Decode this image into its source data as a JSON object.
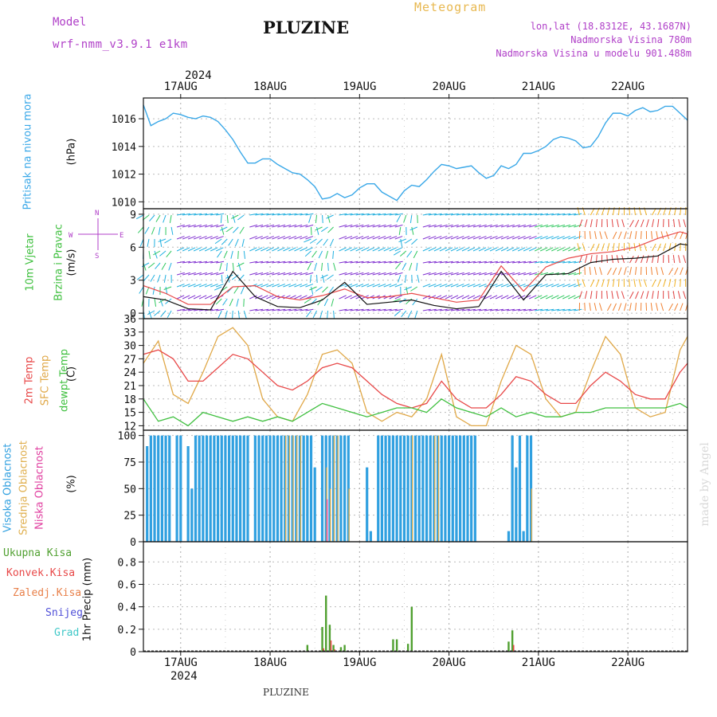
{
  "header": {
    "model_label": "Model",
    "model_name": "wrf-nmm_v3.9.1  e1km",
    "title": "PLUZINE",
    "meteogram": "Meteogram",
    "lonlat": "lon,lat (18.8312E, 43.1687N)",
    "elevation": "Nadmorska Visina 780m",
    "model_elevation": "Nadmorska Visina u modelu 901.488m"
  },
  "footer": {
    "station": "PLUZINE",
    "credit": "made by Angel"
  },
  "time_axis": {
    "year": "2024",
    "days": [
      "17AUG",
      "18AUG",
      "19AUG",
      "20AUG",
      "21AUG",
      "22AUG"
    ]
  },
  "colors": {
    "pressure": "#3aa8e8",
    "temp2m": "#e84848",
    "sfc": "#e0a848",
    "dewpt": "#40c040",
    "cloud_high": "#30a0e0",
    "cloud_mid": "#e0b050",
    "cloud_low": "#e040a0",
    "precip_total": "#50a030",
    "precip_conv": "#e84848",
    "wind_speed": "#111111",
    "wind_gust": "#e84848"
  },
  "panels": {
    "pressure": {
      "label": "Pritisak na nivou mora",
      "unit": "(hPa)"
    },
    "wind": {
      "label1": "10m Vjetar",
      "label2": "Brzina i Pravac",
      "unit": "(m/s)",
      "compass_n": "N",
      "compass_s": "S",
      "compass_w": "W",
      "compass_e": "E"
    },
    "temp": {
      "label1": "2m Temp",
      "label2": "SFC Temp",
      "label3": "dewpt Temp",
      "unit": "(C)"
    },
    "cloud": {
      "label1": "Visoka Oblacnost",
      "label2": "Srednja Oblacnost",
      "label3": "Niska Oblacnost",
      "unit": "(%)"
    },
    "precip": {
      "label": "1hr Precip (mm)",
      "legend": [
        "Ukupna Kisa",
        "Konvek.Kisa",
        "Zaledj.Kisa",
        "Snijeg",
        "Grad"
      ]
    }
  },
  "chart_data": [
    {
      "type": "line",
      "title": "Pritisak na nivou mora",
      "ylabel": "(hPa)",
      "ylim": [
        1009.5,
        1017.5
      ],
      "yticks": [
        1010,
        1012,
        1014,
        1016
      ],
      "x_hours_from_16AUG": [
        14,
        16,
        18,
        20,
        22,
        24,
        26,
        28,
        30,
        32,
        34,
        36,
        38,
        40,
        42,
        44,
        46,
        48,
        50,
        52,
        54,
        56,
        58,
        60,
        62,
        64,
        66,
        68,
        70,
        72,
        74,
        76,
        78,
        80,
        82,
        84,
        86,
        88,
        90,
        92,
        94,
        96,
        98,
        100,
        102,
        104,
        106,
        108,
        110,
        112,
        114,
        116,
        118,
        120,
        122,
        124,
        126,
        128,
        130,
        132,
        134,
        136,
        138,
        140,
        142,
        144,
        146,
        148,
        150,
        152,
        154,
        156,
        158,
        160
      ],
      "values": [
        1017,
        1015.5,
        1015.8,
        1016,
        1016.4,
        1016.3,
        1016.1,
        1016,
        1016.2,
        1016.1,
        1015.8,
        1015.2,
        1014.5,
        1013.6,
        1012.8,
        1012.8,
        1013.1,
        1013.1,
        1012.7,
        1012.4,
        1012.1,
        1012,
        1011.6,
        1011.1,
        1010.2,
        1010.3,
        1010.6,
        1010.3,
        1010.5,
        1011,
        1011.3,
        1011.3,
        1010.7,
        1010.4,
        1010.1,
        1010.8,
        1011.2,
        1011.1,
        1011.6,
        1012.2,
        1012.7,
        1012.6,
        1012.4,
        1012.5,
        1012.6,
        1012.1,
        1011.7,
        1011.9,
        1012.6,
        1012.4,
        1012.7,
        1013.5,
        1013.5,
        1013.7,
        1014,
        1014.5,
        1014.7,
        1014.6,
        1014.4,
        1013.9,
        1014,
        1014.7,
        1015.7,
        1016.4,
        1016.4,
        1016.2,
        1016.6,
        1016.8,
        1016.5,
        1016.6,
        1016.9,
        1016.9,
        1016.4,
        1015.9
      ],
      "legend": "none",
      "grid": true
    },
    {
      "type": "line",
      "title": "10m Vjetar Brzina i Pravac",
      "ylabel": "(m/s)",
      "ylim": [
        -0.5,
        9.5
      ],
      "yticks": [
        0,
        3,
        6,
        9
      ],
      "x_hours_from_16AUG": [
        14,
        20,
        26,
        32,
        38,
        44,
        50,
        56,
        62,
        68,
        74,
        80,
        86,
        92,
        98,
        104,
        110,
        116,
        122,
        128,
        134,
        140,
        146,
        152,
        158,
        160
      ],
      "series": [
        {
          "name": "",
          "values": [
            1.5,
            1.2,
            0.4,
            0.3,
            3.8,
            1.5,
            0.6,
            0.5,
            1.2,
            2.8,
            0.8,
            1.0,
            1.2,
            0.7,
            0.4,
            0.6,
            3.8,
            1.2,
            3.5,
            3.6,
            4.6,
            4.9,
            5.0,
            5.2,
            6.3,
            6.2
          ]
        },
        {
          "name": "",
          "values": [
            2.5,
            1.8,
            0.8,
            0.8,
            2.4,
            2.5,
            1.5,
            1.2,
            1.6,
            2.2,
            1.4,
            1.5,
            1.8,
            1.4,
            1.0,
            1.2,
            4.3,
            2.0,
            4.2,
            5.0,
            5.4,
            5.6,
            6.0,
            6.8,
            7.4,
            7.2
          ]
        }
      ],
      "legend": "none",
      "grid": true
    },
    {
      "type": "line",
      "title": "",
      "ylabel": "(C)",
      "ylim": [
        11,
        36
      ],
      "yticks": [
        12,
        15,
        18,
        21,
        24,
        27,
        30,
        33,
        36
      ],
      "x_hours_from_16AUG": [
        14,
        18,
        22,
        26,
        30,
        34,
        38,
        42,
        46,
        50,
        54,
        58,
        62,
        66,
        70,
        74,
        78,
        82,
        86,
        90,
        94,
        98,
        102,
        106,
        110,
        114,
        118,
        122,
        126,
        130,
        134,
        138,
        142,
        146,
        150,
        154,
        158,
        160
      ],
      "series": [
        {
          "name": "2m Temp",
          "values": [
            28,
            29,
            27,
            22,
            22,
            25,
            28,
            27,
            24,
            21,
            20,
            22,
            25,
            26,
            25,
            22,
            19,
            17,
            16,
            17,
            22,
            18,
            16,
            16,
            19,
            23,
            22,
            19,
            17,
            17,
            21,
            24,
            22,
            19,
            18,
            18,
            24,
            26
          ]
        },
        {
          "name": "SFC Temp",
          "values": [
            26,
            31,
            19,
            17,
            24,
            32,
            34,
            30,
            18,
            14,
            13,
            19,
            28,
            29,
            26,
            15,
            13,
            15,
            14,
            18,
            28,
            14,
            12,
            12,
            22,
            30,
            28,
            18,
            14,
            15,
            24,
            32,
            28,
            16,
            14,
            15,
            29,
            32
          ]
        },
        {
          "name": "dewpt Temp",
          "values": [
            18,
            13,
            14,
            12,
            15,
            14,
            13,
            14,
            13,
            14,
            13,
            15,
            17,
            16,
            15,
            14,
            15,
            16,
            16,
            15,
            18,
            16,
            15,
            14,
            16,
            14,
            15,
            14,
            14,
            15,
            15,
            16,
            16,
            16,
            16,
            16,
            17,
            16
          ]
        }
      ],
      "legend": "left-side",
      "grid": true
    },
    {
      "type": "bar",
      "title": "",
      "ylabel": "(%)",
      "ylim": [
        0,
        105
      ],
      "yticks": [
        0,
        25,
        50,
        75,
        100
      ],
      "x_hours_from_16AUG": [
        15,
        16,
        17,
        18,
        19,
        20,
        21,
        23,
        24,
        26,
        27,
        28,
        29,
        30,
        31,
        32,
        33,
        34,
        35,
        36,
        37,
        38,
        39,
        40,
        41,
        42,
        44,
        45,
        46,
        47,
        48,
        49,
        50,
        51,
        52,
        53,
        54,
        55,
        56,
        57,
        58,
        59,
        60,
        62,
        63,
        64,
        65,
        66,
        67,
        68,
        69,
        74,
        75,
        77,
        78,
        79,
        80,
        81,
        82,
        83,
        84,
        85,
        86,
        87,
        88,
        89,
        90,
        91,
        92,
        93,
        94,
        95,
        96,
        97,
        98,
        99,
        100,
        101,
        102,
        103,
        112,
        113,
        114,
        115,
        116,
        117,
        118
      ],
      "series": [
        {
          "name": "Visoka Oblacnost",
          "values": [
            90,
            100,
            100,
            100,
            100,
            100,
            100,
            100,
            100,
            90,
            50,
            100,
            100,
            100,
            100,
            100,
            100,
            100,
            100,
            100,
            100,
            100,
            100,
            100,
            100,
            100,
            100,
            100,
            100,
            100,
            100,
            100,
            100,
            100,
            100,
            100,
            100,
            100,
            100,
            100,
            100,
            100,
            70,
            100,
            100,
            100,
            100,
            100,
            100,
            100,
            100,
            70,
            10,
            100,
            100,
            100,
            100,
            100,
            100,
            100,
            100,
            100,
            100,
            100,
            100,
            100,
            100,
            100,
            100,
            100,
            100,
            100,
            100,
            100,
            100,
            100,
            100,
            100,
            100,
            100,
            10,
            100,
            70,
            100,
            10,
            100,
            100
          ]
        },
        {
          "name": "Srednja Oblacnost",
          "values": [
            0,
            0,
            0,
            0,
            0,
            0,
            0,
            0,
            0,
            0,
            0,
            0,
            0,
            0,
            0,
            0,
            0,
            0,
            0,
            0,
            0,
            0,
            0,
            0,
            0,
            0,
            0,
            0,
            0,
            0,
            0,
            0,
            0,
            0,
            100,
            100,
            100,
            100,
            100,
            0,
            0,
            0,
            0,
            0,
            70,
            50,
            100,
            100,
            0,
            0,
            50,
            0,
            0,
            0,
            0,
            0,
            0,
            0,
            0,
            0,
            0,
            0,
            100,
            0,
            0,
            0,
            0,
            0,
            100,
            100,
            0,
            0,
            0,
            0,
            0,
            0,
            0,
            0,
            0,
            0,
            0,
            0,
            0,
            0,
            0,
            0,
            50
          ]
        },
        {
          "name": "Niska Oblacnost",
          "values": [
            0,
            0,
            0,
            0,
            0,
            0,
            0,
            0,
            0,
            0,
            0,
            0,
            0,
            0,
            0,
            0,
            0,
            0,
            0,
            0,
            0,
            0,
            0,
            0,
            0,
            0,
            0,
            0,
            0,
            0,
            0,
            0,
            0,
            0,
            0,
            0,
            0,
            0,
            0,
            0,
            0,
            0,
            0,
            0,
            40,
            0,
            0,
            0,
            0,
            0,
            0,
            0,
            0,
            0,
            0,
            0,
            0,
            0,
            0,
            0,
            0,
            0,
            0,
            0,
            0,
            0,
            0,
            0,
            0,
            0,
            0,
            0,
            0,
            0,
            0,
            0,
            0,
            0,
            0,
            0,
            0,
            0,
            0,
            0,
            0,
            0,
            0
          ]
        }
      ],
      "legend": "left-side",
      "grid": true
    },
    {
      "type": "bar",
      "title": "",
      "ylabel": "1hr Precip (mm)",
      "ylim": [
        0,
        0.98
      ],
      "yticks": [
        0,
        0.2,
        0.4,
        0.6,
        0.8
      ],
      "x_hours_from_16AUG": [
        58,
        62,
        63,
        64,
        65,
        66,
        67,
        68,
        69,
        81,
        82,
        85,
        86,
        112,
        113
      ],
      "series": [
        {
          "name": "Ukupna Kisa",
          "values": [
            0.06,
            0.22,
            0.5,
            0.24,
            0.06,
            0.0,
            0.04,
            0.06,
            0.0,
            0.11,
            0.11,
            0.07,
            0.4,
            0.09,
            0.19
          ]
        },
        {
          "name": "Konvek.Kisa",
          "values": [
            0.0,
            0.03,
            0.0,
            0.1,
            0.02,
            0.0,
            0.0,
            0.0,
            0.0,
            0.0,
            0.0,
            0.0,
            0.0,
            0.0,
            0.06
          ]
        }
      ],
      "legend": "left-side",
      "grid": true
    }
  ]
}
